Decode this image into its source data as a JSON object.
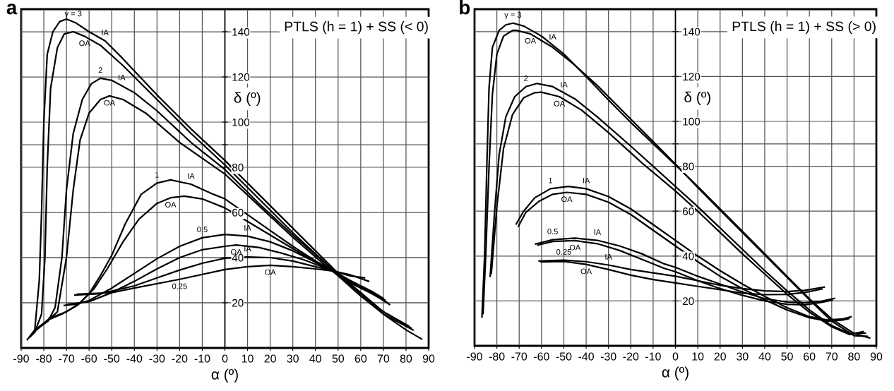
{
  "chart_data": [
    {
      "type": "line",
      "title": "PTLS (h = 1) + SS (< 0)",
      "xlabel": "α (º)",
      "ylabel": "δ (º)",
      "xlim": [
        -90,
        90
      ],
      "ylim": [
        0,
        150
      ],
      "xticks": [
        -90,
        -80,
        -70,
        -60,
        -50,
        -40,
        -30,
        -20,
        -10,
        0,
        10,
        20,
        30,
        40,
        50,
        60,
        70,
        80,
        90
      ],
      "yticks": [
        20,
        40,
        60,
        80,
        {
          "value": 90,
          "label": null
        },
        100,
        120,
        140
      ],
      "grid": true,
      "annotations": [
        "a",
        {
          "text": "γ = 3",
          "x": -67,
          "y": 144.4
        },
        {
          "text": "IA",
          "x": -53,
          "y": 136
        },
        {
          "text": "OA",
          "x": -62,
          "y": 138
        },
        {
          "text": "2",
          "x": -55,
          "y": 119.4
        },
        {
          "text": "IA",
          "x": -45.6,
          "y": 116.1
        },
        {
          "text": "OA",
          "x": -51,
          "y": 111.6
        },
        {
          "text": "1",
          "x": -30,
          "y": 73
        },
        {
          "text": "IA",
          "x": -15,
          "y": 72.5
        },
        {
          "text": "OA",
          "x": -24,
          "y": 66.5
        },
        {
          "text": "0.5",
          "x": -10,
          "y": 48.8
        },
        {
          "text": "IA",
          "x": 10,
          "y": 49.5
        },
        {
          "text": "OA",
          "x": 5,
          "y": 45.6
        },
        {
          "text": "IA",
          "x": 10,
          "y": 40.3
        },
        {
          "text": "0.25",
          "x": -20,
          "y": 30.4
        },
        {
          "text": "OA",
          "x": 20,
          "y": 36.6
        }
      ],
      "series": [
        {
          "color": "#000000",
          "x": [
            -87.5,
            -84,
            -82,
            -81,
            -80,
            -78.5,
            -76,
            -73,
            -70,
            -66,
            -60,
            -53,
            -45,
            -30,
            -15,
            0,
            15,
            30,
            45,
            50,
            60,
            70,
            80,
            87.2
          ],
          "values": [
            3.4,
            8,
            30,
            60,
            100,
            130,
            140,
            144.5,
            145.6,
            144,
            140,
            136,
            128,
            112,
            97,
            83,
            68,
            53,
            38,
            33,
            24,
            15,
            8,
            3.8
          ]
        },
        {
          "color": "#000000",
          "x": [
            -86.5,
            -84,
            -81,
            -79.5,
            -78.5,
            -77,
            -74,
            -71,
            -67,
            -62,
            -55,
            -45,
            -30,
            -15,
            0,
            15,
            30,
            45,
            50,
            60,
            70,
            83.4
          ],
          "values": [
            4.5,
            7,
            15,
            40,
            80,
            115,
            133,
            139,
            140,
            138,
            134,
            125,
            110,
            95,
            81,
            66,
            51,
            37,
            32,
            23,
            15,
            7.8
          ]
        },
        {
          "color": "#000000",
          "x": [
            -86,
            -82,
            -78,
            -75,
            -72,
            -70,
            -67,
            -63,
            -59,
            -55,
            -50,
            -40,
            -30,
            -15,
            0,
            15,
            30,
            45,
            50,
            60,
            70,
            82.4
          ],
          "values": [
            5.5,
            9,
            12,
            18,
            40,
            70,
            95,
            110,
            117,
            119.4,
            118.5,
            113,
            105,
            91,
            79,
            64,
            50,
            37,
            33,
            24.5,
            16,
            8.8
          ]
        },
        {
          "color": "#000000",
          "x": [
            -85,
            -82,
            -78,
            -74,
            -70,
            -67,
            -64,
            -60,
            -55,
            -51,
            -45,
            -35,
            -20,
            0,
            15,
            30,
            45,
            50,
            60,
            70,
            81.4
          ],
          "values": [
            6.5,
            9.5,
            12.5,
            16,
            40,
            70,
            92,
            104,
            110,
            111.6,
            110,
            104,
            91,
            77,
            63,
            49,
            36,
            32,
            24,
            16,
            9.6
          ]
        },
        {
          "color": "#000000",
          "x": [
            -79,
            -72,
            -65,
            -60,
            -55,
            -50,
            -44,
            -37,
            -30,
            -24,
            -15,
            -5,
            0,
            10,
            20,
            30,
            40,
            48,
            55,
            65,
            71.9
          ],
          "values": [
            12,
            15,
            19,
            24,
            32,
            41,
            55,
            68,
            73,
            74.4,
            72.5,
            68,
            66,
            59,
            52,
            45,
            38.5,
            34,
            29,
            24,
            20
          ]
        },
        {
          "color": "#000000",
          "x": [
            -78,
            -70,
            -64,
            -58,
            -52,
            -45,
            -38,
            -30,
            -24,
            -18,
            -10,
            0,
            10,
            20,
            30,
            40,
            48,
            55,
            65,
            71
          ],
          "values": [
            13,
            16,
            20,
            26,
            35,
            47,
            57,
            64,
            66.5,
            67.2,
            66,
            62,
            56,
            50,
            44,
            38,
            34,
            29.5,
            24.5,
            21
          ]
        },
        {
          "color": "#000000",
          "x": [
            -71.3,
            -65,
            -60,
            -50,
            -40,
            -30,
            -20,
            -10,
            0,
            10,
            20,
            30,
            40,
            48,
            55,
            65,
            73
          ],
          "values": [
            18.8,
            19.5,
            21,
            26.5,
            33,
            39.5,
            45,
            48.8,
            50.3,
            49.5,
            47,
            43,
            38,
            34,
            30,
            24.5,
            19
          ]
        },
        {
          "color": "#000000",
          "x": [
            -70,
            -60,
            -50,
            -40,
            -30,
            -20,
            -10,
            0,
            5,
            15,
            25,
            35,
            48,
            55,
            65,
            70.2
          ],
          "values": [
            19.2,
            20.5,
            24.5,
            29.5,
            35,
            40,
            43.5,
            45,
            45.6,
            44.5,
            42,
            39,
            34,
            30,
            25,
            21.8
          ]
        },
        {
          "color": "#000000",
          "x": [
            -66.6,
            -55,
            -40,
            -30,
            -20,
            -10,
            0,
            10,
            20,
            30,
            40,
            48,
            55,
            62
          ],
          "values": [
            23.4,
            24,
            27.5,
            31,
            34.5,
            37.5,
            39.7,
            40.3,
            40,
            38.5,
            36,
            34,
            32,
            31
          ]
        },
        {
          "color": "#000000",
          "x": [
            -65.5,
            -50,
            -40,
            -20,
            0,
            10,
            20,
            30,
            40,
            48,
            55,
            63.8
          ],
          "values": [
            23.8,
            24.5,
            26.5,
            30.4,
            34.7,
            36,
            36.6,
            36,
            35,
            34,
            32.5,
            29.4
          ]
        }
      ]
    },
    {
      "type": "line",
      "title": "PTLS (h = 1) + SS (> 0)",
      "xlabel": "α (º)",
      "ylabel": "δ (º)",
      "xlim": [
        -90,
        90
      ],
      "ylim": [
        0,
        150
      ],
      "xticks": [
        -90,
        -80,
        -70,
        -60,
        -50,
        -40,
        -30,
        -20,
        -10,
        0,
        10,
        20,
        30,
        40,
        50,
        60,
        70,
        80,
        90
      ],
      "yticks": [
        20,
        40,
        60,
        80,
        {
          "value": 90,
          "label": null
        },
        100,
        120,
        140
      ],
      "grid": true,
      "annotations": [
        "b",
        {
          "text": "γ = 3",
          "x": -72.8,
          "y": 143.8
        },
        {
          "text": "IA",
          "x": -55,
          "y": 134
        },
        {
          "text": "OA",
          "x": -65,
          "y": 139
        },
        {
          "text": "2",
          "x": -67,
          "y": 115.5
        },
        {
          "text": "IA",
          "x": -50,
          "y": 112.75
        },
        {
          "text": "OA",
          "x": -52,
          "y": 111
        },
        {
          "text": "1",
          "x": -56,
          "y": 70
        },
        {
          "text": "IA",
          "x": -40,
          "y": 70
        },
        {
          "text": "OA",
          "x": -48.7,
          "y": 68.4
        },
        {
          "text": "0.5",
          "x": -55,
          "y": 47.3
        },
        {
          "text": "IA",
          "x": -35,
          "y": 47
        },
        {
          "text": "OA",
          "x": -45,
          "y": 46.9
        },
        {
          "text": "0.25",
          "x": -50,
          "y": 38.2
        },
        {
          "text": "IA",
          "x": -30,
          "y": 36
        },
        {
          "text": "OA",
          "x": -40,
          "y": 36.3
        }
      ],
      "series": [
        {
          "color": "#000000",
          "x": [
            -86.7,
            -85.5,
            -84.5,
            -83.5,
            -82,
            -79,
            -76,
            -72.8,
            -68,
            -60,
            -50,
            -40,
            -30,
            -20,
            -10,
            0,
            10,
            20,
            30,
            40,
            50,
            60,
            70,
            80,
            87.3
          ],
          "values": [
            12.5,
            40,
            80,
            115,
            133,
            140.5,
            143,
            143.8,
            142.5,
            138,
            130,
            120,
            109.5,
            99.5,
            90,
            80.6,
            71,
            61,
            51,
            41,
            31,
            21,
            12,
            5.5,
            3.4
          ]
        },
        {
          "color": "#000000",
          "x": [
            -86.2,
            -85,
            -83.5,
            -82,
            -80,
            -77,
            -73,
            -71.5,
            -65,
            -55,
            -45,
            -35,
            -25,
            -10,
            0,
            10,
            20,
            30,
            40,
            50,
            60,
            70,
            80,
            86.3
          ],
          "values": [
            14,
            40,
            80,
            112,
            130,
            138,
            140.5,
            140.6,
            139,
            133,
            125,
            116,
            106,
            91,
            81,
            70.5,
            60.5,
            50.5,
            40.5,
            30.5,
            20.5,
            11,
            4.5,
            4.2
          ]
        },
        {
          "color": "#000000",
          "x": [
            -83,
            -81,
            -79,
            -76,
            -72,
            -67,
            -62,
            -55,
            -45,
            -35,
            -20,
            -10,
            0,
            10,
            20,
            30,
            40,
            50,
            60,
            70,
            78,
            85.4
          ],
          "values": [
            30.6,
            60,
            85,
            102,
            111,
            115.5,
            116.9,
            115.5,
            110,
            102,
            89,
            80,
            71,
            62,
            52.5,
            43,
            33.5,
            24.5,
            16,
            9,
            5.5,
            5.6
          ]
        },
        {
          "color": "#000000",
          "x": [
            -82.5,
            -80,
            -77,
            -73,
            -68,
            -63,
            -60,
            -52,
            -42,
            -30,
            -15,
            0,
            10,
            20,
            30,
            40,
            50,
            60,
            70,
            78,
            84.4
          ],
          "values": [
            32,
            62,
            88,
            103,
            110.5,
            112.8,
            113,
            111,
            105,
            95,
            81.5,
            69,
            60,
            50.5,
            41,
            32,
            23,
            15,
            8.5,
            5,
            6.4
          ]
        },
        {
          "color": "#000000",
          "x": [
            -71.5,
            -68,
            -63,
            -56,
            -48,
            -40,
            -30,
            -20,
            -10,
            0,
            10,
            20,
            30,
            40,
            50,
            60,
            68,
            75,
            79
          ],
          "values": [
            54,
            60,
            66,
            70,
            71,
            70,
            66.5,
            61,
            54,
            47,
            40,
            33.5,
            27.5,
            22,
            17,
            13,
            11.5,
            12,
            13
          ]
        },
        {
          "color": "#000000",
          "x": [
            -70.5,
            -67,
            -61,
            -55,
            -48.7,
            -40,
            -30,
            -20,
            -10,
            0,
            10,
            20,
            30,
            40,
            50,
            60,
            68,
            75,
            78
          ],
          "values": [
            53,
            59.5,
            64.5,
            67.5,
            68.4,
            67.5,
            64,
            58.5,
            51.5,
            44.5,
            37.5,
            31,
            25.5,
            20.5,
            16,
            12.5,
            11,
            11.5,
            12.2
          ]
        },
        {
          "color": "#000000",
          "x": [
            -63,
            -55,
            -45,
            -35,
            -25,
            -15,
            -5,
            0,
            10,
            20,
            30,
            40,
            50,
            58,
            65,
            71.5
          ],
          "values": [
            45.3,
            47.3,
            48,
            47,
            44.5,
            41,
            36.5,
            35,
            31,
            27.5,
            24,
            21,
            19.5,
            19.2,
            19.8,
            21.2
          ]
        },
        {
          "color": "#000000",
          "x": [
            -62,
            -55,
            -45,
            -35,
            -25,
            -15,
            -5,
            0,
            10,
            20,
            30,
            40,
            50,
            58,
            65,
            70.5
          ],
          "values": [
            44.8,
            46.5,
            46.9,
            45.5,
            42.5,
            38.5,
            34.5,
            33,
            29,
            25.5,
            22.5,
            20,
            18.5,
            18.3,
            19.3,
            20.4
          ]
        },
        {
          "color": "#000000",
          "x": [
            -61.4,
            -50,
            -40,
            -30,
            -20,
            -10,
            0,
            10,
            20,
            30,
            40,
            50,
            58,
            67
          ],
          "values": [
            37.8,
            38.2,
            37.5,
            36,
            34,
            32.5,
            31,
            29,
            27,
            25.5,
            24.5,
            24.2,
            24.7,
            26.2
          ]
        },
        {
          "color": "#000000",
          "x": [
            -60.5,
            -50,
            -40,
            -30,
            -20,
            -10,
            0,
            10,
            20,
            30,
            40,
            50,
            58,
            66
          ],
          "values": [
            37.4,
            37.6,
            36.3,
            34,
            31.5,
            29.5,
            28,
            26.5,
            25,
            23.5,
            22.8,
            22.9,
            23.8,
            25.4
          ]
        }
      ]
    }
  ]
}
